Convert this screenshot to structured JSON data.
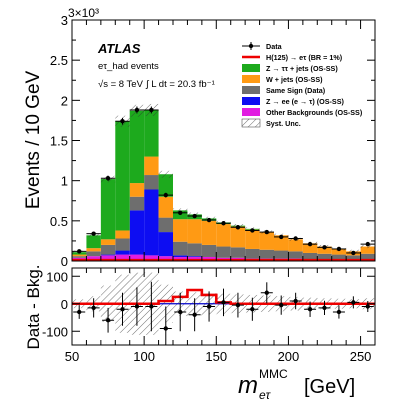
{
  "chart_data": {
    "type": "bar",
    "experiment": "ATLAS",
    "channel": "eτ_had events",
    "energy": "√s = 8 TeV",
    "luminosity": "∫ L dt = 20.3 fb⁻¹",
    "exponent": "3×10³",
    "ylabel": "Events / 10 GeV",
    "ylabel_ratio": "Data - Bkg.",
    "xlabel_m": "m",
    "xlabel_sub": "eτ",
    "xlabel_sup": "MMC",
    "xlabel_unit": "[GeV]",
    "xlim": [
      50,
      260
    ],
    "ylim": [
      0,
      3
    ],
    "ylim_ratio": [
      -150,
      130
    ],
    "x_ticks": [
      50,
      100,
      150,
      200,
      250
    ],
    "y_ticks": [
      0,
      0.5,
      1,
      1.5,
      2,
      2.5,
      3
    ],
    "ratio_ticks": [
      -100,
      0,
      100
    ],
    "bin_edges": [
      50,
      60,
      70,
      80,
      90,
      100,
      110,
      120,
      130,
      140,
      150,
      160,
      170,
      180,
      190,
      200,
      210,
      220,
      230,
      240,
      250,
      260
    ],
    "stack": [
      {
        "name": "Other Backgrounds (OS-SS)",
        "color": "#e11de1",
        "values": [
          0.04,
          0.06,
          0.07,
          0.08,
          0.08,
          0.07,
          0.06,
          0.05,
          0.05,
          0.05,
          0.04,
          0.04,
          0.03,
          0.03,
          0.03,
          0.03,
          0.02,
          0.02,
          0.02,
          0.02,
          0.02
        ]
      },
      {
        "name": "Z → ee (e → τ) (OS-SS)",
        "color": "#0d0df2",
        "values": [
          0,
          0,
          0.01,
          0.05,
          0.55,
          0.82,
          0.3,
          0.02,
          0.01,
          0,
          0,
          0,
          0,
          0,
          0,
          0,
          0,
          0,
          0,
          0,
          0
        ]
      },
      {
        "name": "Same Sign (Data)",
        "color": "#6e6e6e",
        "values": [
          0.02,
          0.06,
          0.12,
          0.15,
          0.17,
          0.18,
          0.18,
          0.17,
          0.16,
          0.15,
          0.14,
          0.13,
          0.12,
          0.11,
          0.1,
          0.09,
          0.08,
          0.07,
          0.06,
          0.05,
          0.07
        ]
      },
      {
        "name": "W + jets (OS-SS)",
        "color": "#ff9a14",
        "values": [
          0.02,
          0.04,
          0.07,
          0.1,
          0.17,
          0.23,
          0.26,
          0.28,
          0.3,
          0.3,
          0.28,
          0.26,
          0.24,
          0.22,
          0.19,
          0.15,
          0.12,
          0.09,
          0.07,
          0.05,
          0.09
        ]
      },
      {
        "name": "Z → ττ + jets (OS-SS)",
        "color": "#1daa1d",
        "values": [
          0.03,
          0.16,
          0.75,
          1.36,
          0.9,
          0.58,
          0.28,
          0.11,
          0.06,
          0.03,
          0.02,
          0.01,
          0.01,
          0,
          0,
          0,
          0,
          0,
          0,
          0,
          0
        ]
      }
    ],
    "data_series": {
      "name": "Data",
      "values": [
        0.12,
        0.34,
        1.03,
        1.74,
        1.88,
        1.88,
        0.82,
        0.6,
        0.56,
        0.51,
        0.47,
        0.42,
        0.38,
        0.36,
        0.3,
        0.28,
        0.21,
        0.17,
        0.15,
        0.1,
        0.21
      ]
    },
    "signal": {
      "name": "H(125) → eτ (BR = 1%)",
      "color": "#ee0000",
      "values": [
        0,
        0,
        0,
        0,
        0,
        0,
        10,
        25,
        50,
        32,
        5,
        0,
        0,
        0,
        0,
        0,
        0,
        0,
        0,
        0,
        0
      ]
    },
    "syst_band": {
      "name": "Syst. Unc."
    },
    "ratio_data": [
      {
        "x": 55,
        "y": -30,
        "err": 25
      },
      {
        "x": 65,
        "y": -15,
        "err": 35
      },
      {
        "x": 75,
        "y": -60,
        "err": 45
      },
      {
        "x": 85,
        "y": -20,
        "err": 60
      },
      {
        "x": 95,
        "y": -10,
        "err": 70
      },
      {
        "x": 105,
        "y": -10,
        "err": 90
      },
      {
        "x": 115,
        "y": -90,
        "err": 80
      },
      {
        "x": 125,
        "y": -30,
        "err": 70
      },
      {
        "x": 135,
        "y": -40,
        "err": 60
      },
      {
        "x": 145,
        "y": -10,
        "err": 55
      },
      {
        "x": 155,
        "y": 5,
        "err": 50
      },
      {
        "x": 165,
        "y": -5,
        "err": 45
      },
      {
        "x": 175,
        "y": -20,
        "err": 42
      },
      {
        "x": 185,
        "y": 40,
        "err": 38
      },
      {
        "x": 195,
        "y": -5,
        "err": 35
      },
      {
        "x": 205,
        "y": 10,
        "err": 30
      },
      {
        "x": 215,
        "y": -20,
        "err": 28
      },
      {
        "x": 225,
        "y": -15,
        "err": 26
      },
      {
        "x": 235,
        "y": -30,
        "err": 24
      },
      {
        "x": 245,
        "y": 5,
        "err": 22
      },
      {
        "x": 255,
        "y": -10,
        "err": 20
      }
    ],
    "legend_position": "top-right"
  }
}
